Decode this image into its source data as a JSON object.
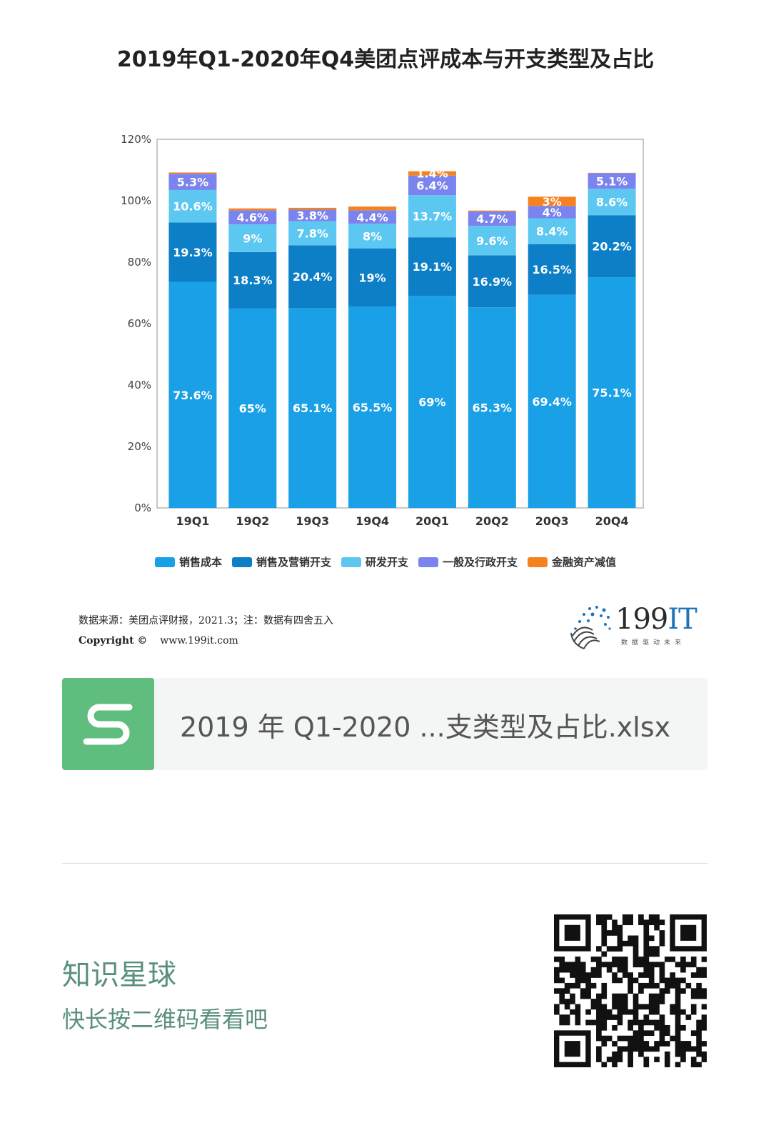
{
  "chart_data": {
    "type": "bar",
    "stacked": true,
    "title": "2019年Q1-2020年Q4美团点评成本与开支类型及占比",
    "categories": [
      "19Q1",
      "19Q2",
      "19Q3",
      "19Q4",
      "20Q1",
      "20Q2",
      "20Q3",
      "20Q4"
    ],
    "y_ticks": [
      "0%",
      "20%",
      "40%",
      "60%",
      "80%",
      "100%",
      "120%"
    ],
    "ylim": [
      0,
      120
    ],
    "grid": false,
    "legend_position": "bottom",
    "series": [
      {
        "name": "销售成本",
        "color": "#1aa0e6",
        "values": [
          73.6,
          65,
          65.1,
          65.5,
          69,
          65.3,
          69.4,
          75.1
        ],
        "labels": [
          "73.6%",
          "65%",
          "65.1%",
          "65.5%",
          "69%",
          "65.3%",
          "69.4%",
          "75.1%"
        ]
      },
      {
        "name": "销售及营销开支",
        "color": "#0c7fc7",
        "values": [
          19.3,
          18.3,
          20.4,
          19,
          19.1,
          16.9,
          16.5,
          20.2
        ],
        "labels": [
          "19.3%",
          "18.3%",
          "20.4%",
          "19%",
          "19.1%",
          "16.9%",
          "16.5%",
          "20.2%"
        ]
      },
      {
        "name": "研发开支",
        "color": "#5cc8f2",
        "values": [
          10.6,
          9,
          7.8,
          8,
          13.7,
          9.6,
          8.4,
          8.6
        ],
        "labels": [
          "10.6%",
          "9%",
          "7.8%",
          "8%",
          "13.7%",
          "9.6%",
          "8.4%",
          "8.6%"
        ]
      },
      {
        "name": "一般及行政开支",
        "color": "#7b84ee",
        "values": [
          5.3,
          4.6,
          3.8,
          4.4,
          6.4,
          4.7,
          4,
          5.1
        ],
        "labels": [
          "5.3%",
          "4.6%",
          "3.8%",
          "4.4%",
          "6.4%",
          "4.7%",
          "4%",
          "5.1%"
        ]
      },
      {
        "name": "金融资产减值",
        "color": "#f5821f",
        "values": [
          0.4,
          0.6,
          0.6,
          1.2,
          1.4,
          0.3,
          3,
          0.1
        ],
        "labels": [
          "",
          "",
          "",
          "",
          "1.4%",
          "",
          "3%",
          ""
        ]
      }
    ]
  },
  "source": {
    "line1": "数据来源：美团点评财报，2021.3；注：数据有四舍五入",
    "copyright": "Copyright ©",
    "website": "www.199it.com"
  },
  "logo": {
    "number": "199",
    "letters": "IT",
    "tagline": "数据驱动未来"
  },
  "file": {
    "name": "2019 年 Q1-2020 ...支类型及占比.xlsx",
    "icon": "spreadsheet-s-icon"
  },
  "footer": {
    "title": "知识星球",
    "subtitle": "快长按二维码看看吧"
  }
}
